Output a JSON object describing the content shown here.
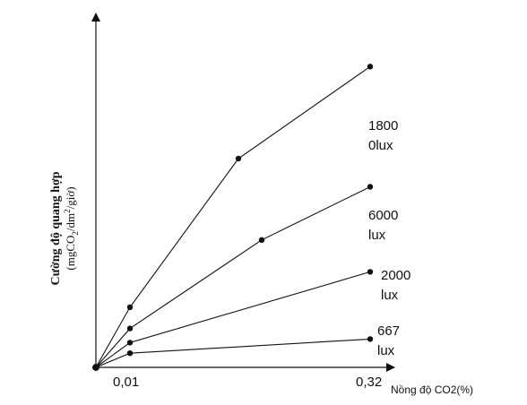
{
  "chart_data": {
    "type": "line",
    "title": "",
    "xlabel": "Nồng độ CO2(%)",
    "ylabel": "Cường độ quang hợp",
    "ylabel_unit_parts": [
      "(mgCO",
      "2",
      "/dm",
      "2",
      "/giờ)"
    ],
    "x_ticks": [
      "0,01",
      "0,32"
    ],
    "grid": false,
    "legend": "none",
    "series": [
      {
        "name_lines": [
          "1800",
          "0lux"
        ],
        "points": [
          [
            0,
            0
          ],
          [
            0.01,
            0.17
          ],
          [
            0.15,
            0.59
          ],
          [
            0.32,
            0.85
          ]
        ]
      },
      {
        "name_lines": [
          "6000",
          "lux"
        ],
        "points": [
          [
            0,
            0
          ],
          [
            0.01,
            0.11
          ],
          [
            0.18,
            0.36
          ],
          [
            0.32,
            0.51
          ]
        ]
      },
      {
        "name_lines": [
          "2000",
          "lux"
        ],
        "points": [
          [
            0,
            0
          ],
          [
            0.01,
            0.07
          ],
          [
            0.32,
            0.27
          ]
        ]
      },
      {
        "name_lines": [
          "667",
          "lux"
        ],
        "points": [
          [
            0,
            0
          ],
          [
            0.01,
            0.04
          ],
          [
            0.32,
            0.08
          ]
        ]
      }
    ]
  }
}
